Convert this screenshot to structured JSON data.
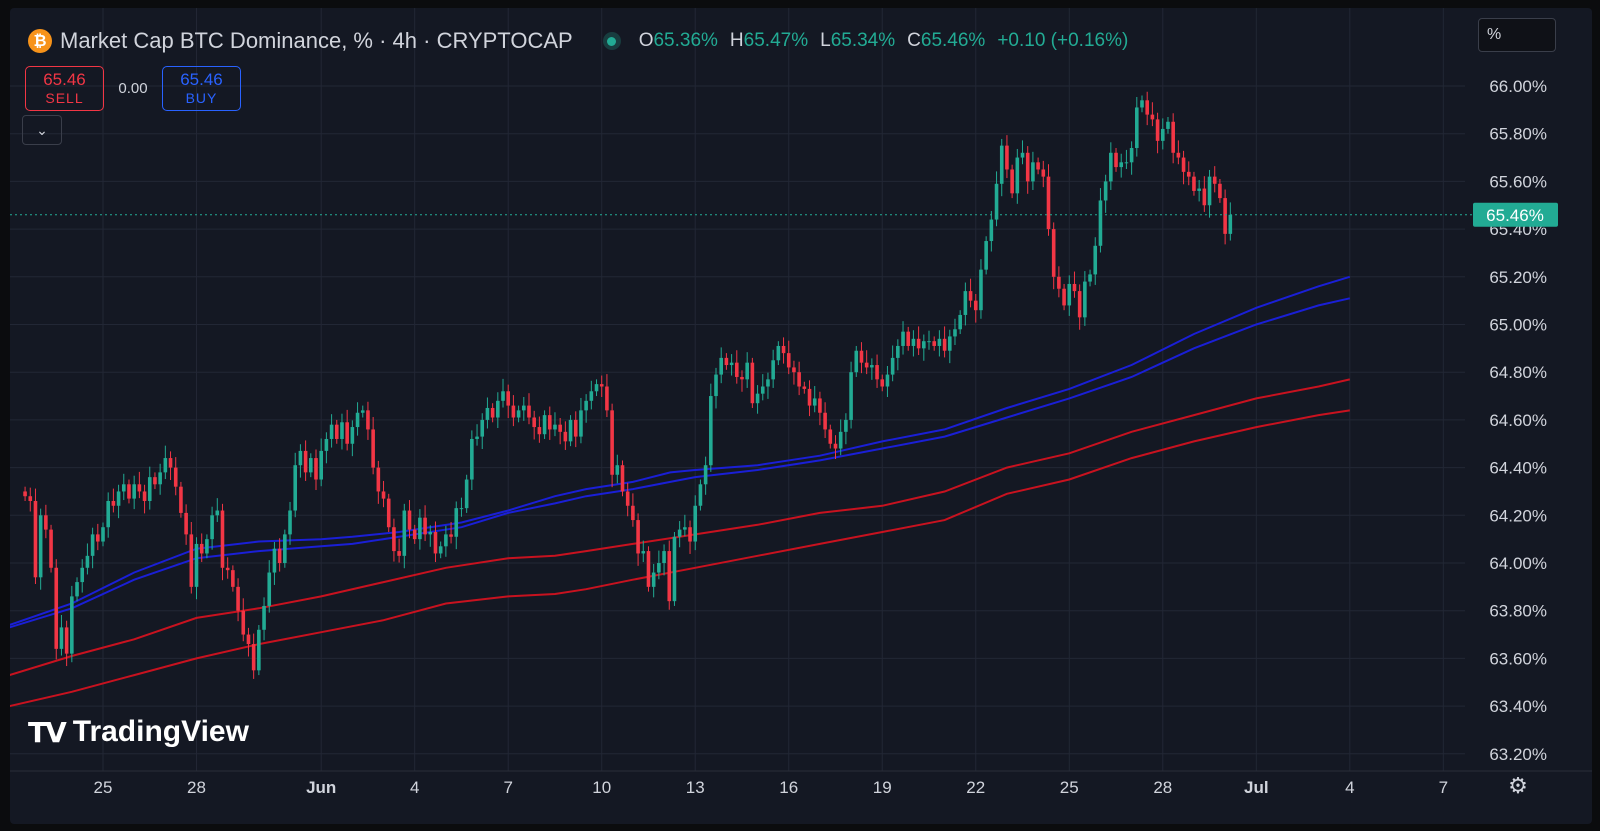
{
  "header": {
    "symbol_icon": "bitcoin-icon",
    "title": "Market Cap BTC Dominance, % · 4h · CRYPTOCAP",
    "ohlc": [
      {
        "key": "O",
        "value": "65.36%"
      },
      {
        "key": "H",
        "value": "65.47%"
      },
      {
        "key": "L",
        "value": "65.34%"
      },
      {
        "key": "C",
        "value": "65.46%"
      }
    ],
    "change": "+0.10 (+0.16%)"
  },
  "trade": {
    "sell_price": "65.46",
    "sell_label": "SELL",
    "spread": "0.00",
    "buy_price": "65.46",
    "buy_label": "BUY"
  },
  "scale_unit": "%",
  "logo": {
    "text": "TradingView",
    "mark": "TV"
  },
  "colors": {
    "up": "#22ab94",
    "down": "#f23645",
    "ema_blue": "#1a1fd6",
    "ema_red": "#c8121f",
    "background": "#141823",
    "grid": "#222735",
    "text": "#d1d4dc"
  },
  "chart_data": {
    "type": "candlestick",
    "y_axis": {
      "ticks": [
        "66.00%",
        "65.80%",
        "65.60%",
        "65.40%",
        "65.20%",
        "65.00%",
        "64.80%",
        "64.60%",
        "64.40%",
        "64.20%",
        "64.00%",
        "63.80%",
        "63.60%",
        "63.40%",
        "63.20%"
      ],
      "ylim": [
        63.12,
        66.06
      ]
    },
    "x_axis": {
      "ticks": [
        "25",
        "28",
        "Jun",
        "4",
        "7",
        "10",
        "13",
        "16",
        "19",
        "22",
        "25",
        "28",
        "Jul",
        "4",
        "7"
      ],
      "bold": [
        "Jun",
        "Jul"
      ],
      "range_days": [
        22.0,
        38.4
      ]
    },
    "last_price": {
      "value": 65.46,
      "label": "65.46%"
    },
    "candles_close": [
      64.28,
      64.26,
      63.94,
      64.2,
      64.14,
      63.98,
      63.64,
      63.73,
      63.62,
      63.86,
      63.92,
      63.98,
      64.03,
      64.12,
      64.09,
      64.15,
      64.26,
      64.24,
      64.3,
      64.33,
      64.27,
      64.33,
      64.3,
      64.26,
      64.36,
      64.33,
      64.38,
      64.44,
      64.4,
      64.32,
      64.21,
      64.12,
      63.9,
      64.08,
      64.04,
      64.1,
      64.2,
      64.22,
      63.98,
      63.97,
      63.9,
      63.8,
      63.7,
      63.66,
      63.55,
      63.72,
      63.82,
      63.96,
      64.06,
      64.0,
      64.12,
      64.22,
      64.41,
      64.47,
      64.38,
      64.44,
      64.35,
      64.47,
      64.52,
      64.58,
      64.52,
      64.59,
      64.5,
      64.57,
      64.63,
      64.64,
      64.56,
      64.4,
      64.3,
      64.27,
      64.15,
      64.05,
      64.03,
      64.22,
      64.14,
      64.1,
      64.19,
      64.12,
      64.13,
      64.04,
      64.07,
      64.12,
      64.11,
      64.23,
      64.23,
      64.35,
      64.52,
      64.53,
      64.6,
      64.65,
      64.61,
      64.68,
      64.72,
      64.66,
      64.61,
      64.64,
      64.66,
      64.61,
      64.57,
      64.54,
      64.62,
      64.56,
      64.58,
      64.55,
      64.51,
      64.6,
      64.53,
      64.64,
      64.68,
      64.72,
      64.75,
      64.74,
      64.64,
      64.37,
      64.41,
      64.3,
      64.24,
      64.18,
      64.04,
      64.05,
      63.9,
      63.96,
      64.0,
      64.05,
      63.84,
      64.11,
      64.14,
      64.15,
      64.09,
      64.24,
      64.33,
      64.41,
      64.7,
      64.79,
      64.86,
      64.83,
      64.84,
      64.78,
      64.77,
      64.84,
      64.67,
      64.71,
      64.74,
      64.77,
      64.85,
      64.91,
      64.88,
      64.82,
      64.8,
      64.74,
      64.73,
      64.66,
      64.69,
      64.63,
      64.56,
      64.5,
      64.48,
      64.55,
      64.6,
      64.8,
      64.89,
      64.84,
      64.82,
      64.83,
      64.77,
      64.74,
      64.79,
      64.86,
      64.91,
      64.97,
      64.91,
      64.94,
      64.9,
      64.93,
      64.93,
      64.91,
      64.94,
      64.89,
      64.95,
      64.98,
      65.04,
      65.14,
      65.1,
      65.06,
      65.23,
      65.35,
      65.44,
      65.59,
      65.75,
      65.65,
      65.55,
      65.7,
      65.72,
      65.6,
      65.68,
      65.65,
      65.62,
      65.4,
      65.2,
      65.15,
      65.08,
      65.17,
      65.14,
      65.03,
      65.18,
      65.21,
      65.33,
      65.52,
      65.6,
      65.72,
      65.66,
      65.68,
      65.68,
      65.74,
      65.91,
      65.94,
      65.88,
      65.86,
      65.77,
      65.82,
      65.85,
      65.72,
      65.7,
      65.64,
      65.62,
      65.56,
      65.57,
      65.5,
      65.62,
      65.59,
      65.53,
      65.38,
      65.46
    ],
    "series": [
      {
        "name": "",
        "color": "#1a1fd6",
        "points": [
          [
            22.0,
            63.74
          ],
          [
            24.0,
            63.83
          ],
          [
            26.0,
            63.96
          ],
          [
            28.0,
            64.06
          ],
          [
            30.0,
            64.09
          ],
          [
            32.0,
            64.1
          ],
          [
            33.0,
            64.11
          ],
          [
            34.5,
            64.13
          ],
          [
            36.5,
            64.17
          ],
          [
            38.0,
            64.22
          ],
          [
            39.5,
            64.28
          ],
          [
            40.5,
            64.31
          ],
          [
            42.0,
            64.34
          ],
          [
            43.2,
            64.38
          ],
          [
            44.0,
            64.39
          ],
          [
            46.0,
            64.41
          ],
          [
            48.0,
            64.45
          ],
          [
            50.0,
            64.51
          ],
          [
            52.0,
            64.56
          ],
          [
            54.0,
            64.65
          ],
          [
            56.0,
            64.73
          ],
          [
            58.0,
            64.83
          ],
          [
            60.0,
            64.96
          ],
          [
            62.0,
            65.07
          ],
          [
            64.0,
            65.16
          ],
          [
            65.0,
            65.2
          ]
        ]
      },
      {
        "name": "",
        "color": "#1a1fd6",
        "points": [
          [
            22.0,
            63.73
          ],
          [
            24.0,
            63.81
          ],
          [
            26.0,
            63.93
          ],
          [
            28.0,
            64.02
          ],
          [
            30.0,
            64.05
          ],
          [
            32.0,
            64.07
          ],
          [
            33.0,
            64.08
          ],
          [
            34.5,
            64.11
          ],
          [
            36.5,
            64.15
          ],
          [
            38.0,
            64.21
          ],
          [
            39.5,
            64.25
          ],
          [
            40.5,
            64.28
          ],
          [
            42.0,
            64.31
          ],
          [
            43.2,
            64.34
          ],
          [
            44.0,
            64.36
          ],
          [
            46.0,
            64.39
          ],
          [
            48.0,
            64.43
          ],
          [
            50.0,
            64.48
          ],
          [
            52.0,
            64.53
          ],
          [
            54.0,
            64.61
          ],
          [
            56.0,
            64.69
          ],
          [
            58.0,
            64.78
          ],
          [
            60.0,
            64.9
          ],
          [
            62.0,
            65.0
          ],
          [
            64.0,
            65.08
          ],
          [
            65.0,
            65.11
          ]
        ]
      },
      {
        "name": "",
        "color": "#c8121f",
        "points": [
          [
            22.0,
            63.53
          ],
          [
            24.0,
            63.61
          ],
          [
            26.0,
            63.68
          ],
          [
            28.0,
            63.77
          ],
          [
            30.0,
            63.81
          ],
          [
            32.0,
            63.86
          ],
          [
            34.0,
            63.92
          ],
          [
            36.0,
            63.98
          ],
          [
            38.0,
            64.02
          ],
          [
            39.5,
            64.03
          ],
          [
            40.5,
            64.05
          ],
          [
            42.0,
            64.08
          ],
          [
            44.0,
            64.12
          ],
          [
            46.0,
            64.16
          ],
          [
            48.0,
            64.21
          ],
          [
            50.0,
            64.24
          ],
          [
            52.0,
            64.3
          ],
          [
            54.0,
            64.4
          ],
          [
            56.0,
            64.46
          ],
          [
            58.0,
            64.55
          ],
          [
            60.0,
            64.62
          ],
          [
            62.0,
            64.69
          ],
          [
            64.0,
            64.74
          ],
          [
            65.0,
            64.77
          ]
        ]
      },
      {
        "name": "",
        "color": "#c8121f",
        "points": [
          [
            22.0,
            63.4
          ],
          [
            24.0,
            63.46
          ],
          [
            26.0,
            63.53
          ],
          [
            28.0,
            63.6
          ],
          [
            30.0,
            63.66
          ],
          [
            32.0,
            63.71
          ],
          [
            34.0,
            63.76
          ],
          [
            36.0,
            63.83
          ],
          [
            38.0,
            63.86
          ],
          [
            39.5,
            63.87
          ],
          [
            40.5,
            63.89
          ],
          [
            42.0,
            63.93
          ],
          [
            44.0,
            63.98
          ],
          [
            46.0,
            64.03
          ],
          [
            48.0,
            64.08
          ],
          [
            50.0,
            64.13
          ],
          [
            52.0,
            64.18
          ],
          [
            54.0,
            64.29
          ],
          [
            56.0,
            64.35
          ],
          [
            58.0,
            64.44
          ],
          [
            60.0,
            64.51
          ],
          [
            62.0,
            64.57
          ],
          [
            64.0,
            64.62
          ],
          [
            65.0,
            64.64
          ]
        ]
      }
    ]
  }
}
